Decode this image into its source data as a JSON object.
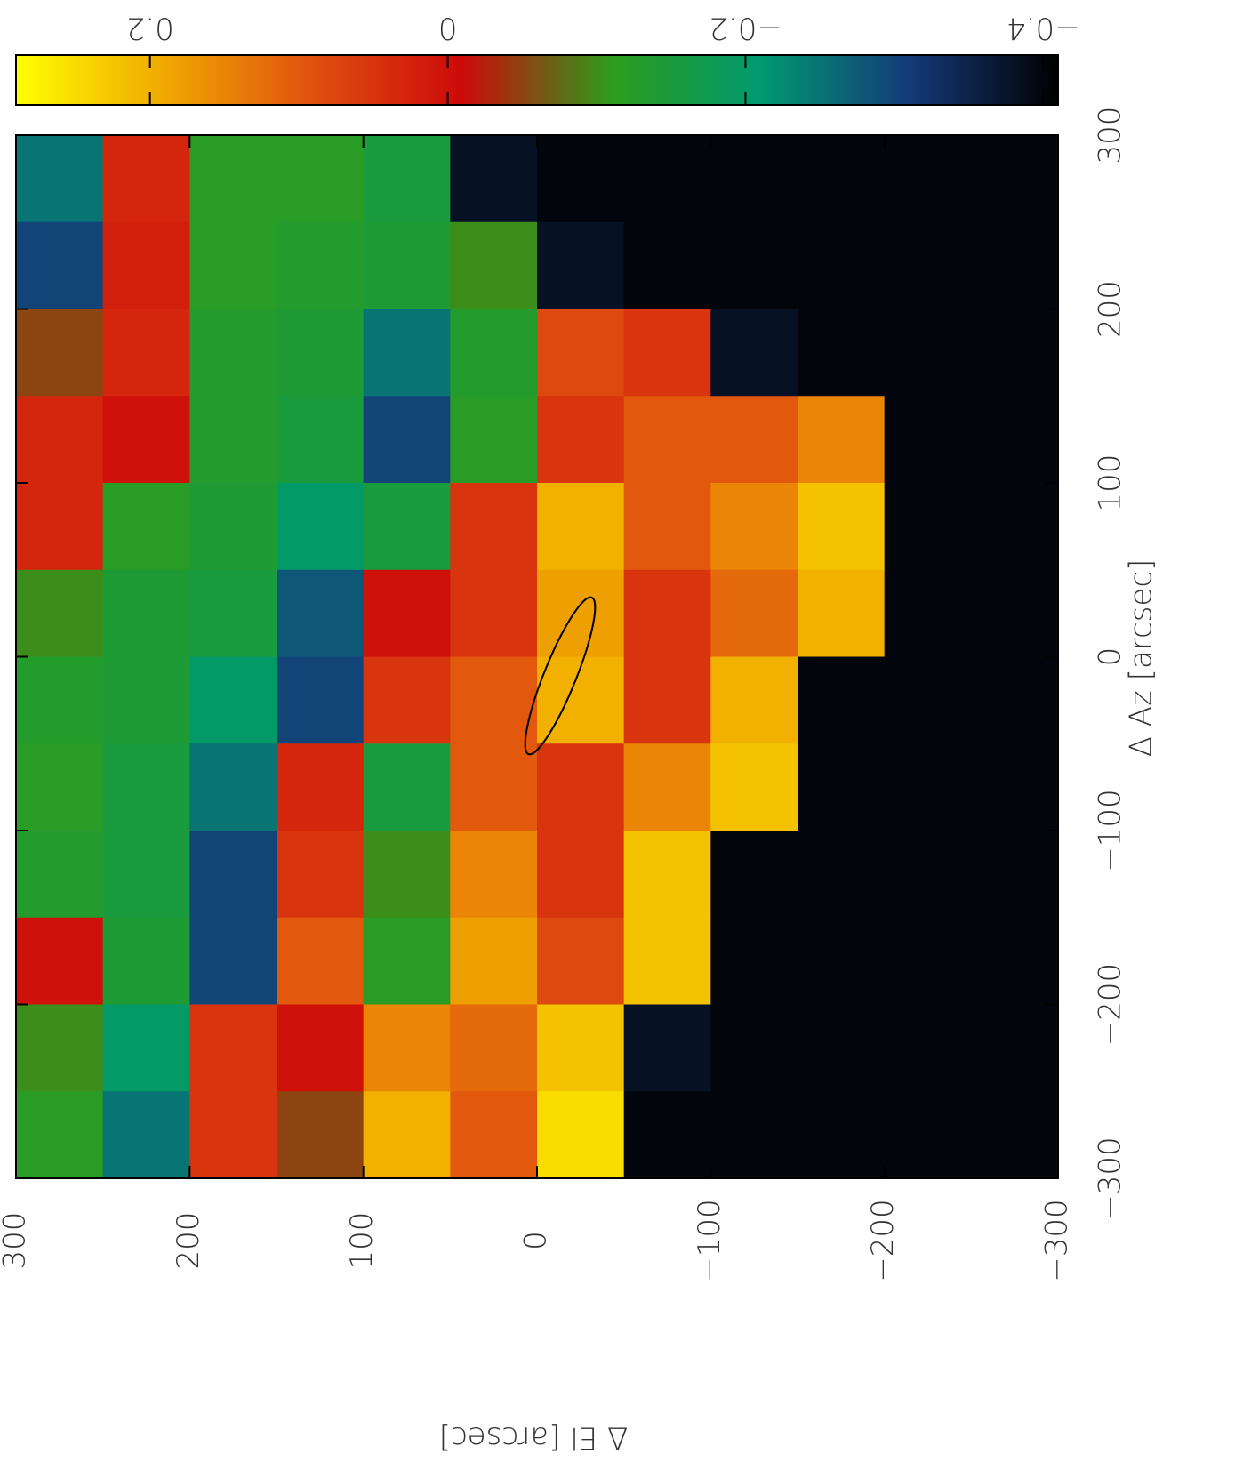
{
  "chart_data": {
    "type": "heatmap",
    "x_label": "Δ El [arcsec]",
    "y_label": "Δ Az [arcsec]",
    "xlim": [
      300,
      -300
    ],
    "ylim": [
      300,
      -300
    ],
    "xticks": [
      300,
      200,
      100,
      0,
      {
        "value": -100,
        "label": "−100"
      },
      {
        "value": -200,
        "label": "−200"
      },
      {
        "value": -300,
        "label": "−300"
      }
    ],
    "yticks": [
      300,
      200,
      100,
      0,
      {
        "value": -100,
        "label": "−100"
      },
      {
        "value": -200,
        "label": "−200"
      },
      {
        "value": -300,
        "label": "−300"
      }
    ],
    "x": [
      275,
      225,
      175,
      125,
      75,
      25,
      -25,
      -75,
      -125,
      -175,
      -225,
      -275
    ],
    "y": [
      275,
      225,
      175,
      125,
      75,
      25,
      -25,
      -75,
      -125,
      -175,
      -225,
      -275
    ],
    "z": [
      [
        -0.25,
        0.03,
        -0.12,
        -0.12,
        -0.15,
        -0.38,
        -0.4,
        -0.4,
        -0.4,
        -0.4,
        -0.4,
        -0.4
      ],
      [
        -0.3,
        0.02,
        -0.12,
        -0.13,
        -0.14,
        -0.1,
        -0.38,
        -0.4,
        -0.4,
        -0.4,
        -0.4,
        -0.4
      ],
      [
        -0.05,
        0.03,
        -0.13,
        -0.14,
        -0.25,
        -0.13,
        0.08,
        0.05,
        -0.38,
        -0.4,
        -0.4,
        -0.4
      ],
      [
        0.03,
        0.0,
        -0.13,
        -0.15,
        -0.3,
        -0.12,
        0.05,
        0.1,
        0.1,
        0.15,
        -0.4,
        -0.4
      ],
      [
        0.03,
        -0.12,
        -0.14,
        -0.2,
        -0.15,
        0.05,
        0.2,
        0.1,
        0.15,
        0.22,
        -0.4,
        -0.4
      ],
      [
        -0.1,
        -0.14,
        -0.15,
        -0.28,
        0.0,
        0.05,
        0.18,
        0.05,
        0.12,
        0.2,
        -0.4,
        -0.4
      ],
      [
        -0.13,
        -0.14,
        -0.2,
        -0.3,
        0.05,
        0.1,
        0.2,
        0.05,
        0.2,
        -0.4,
        -0.4,
        -0.4
      ],
      [
        -0.12,
        -0.15,
        -0.25,
        0.03,
        -0.15,
        0.1,
        0.05,
        0.15,
        0.22,
        -0.4,
        -0.4,
        -0.4
      ],
      [
        -0.13,
        -0.15,
        -0.3,
        0.05,
        -0.1,
        0.15,
        0.05,
        0.22,
        -0.4,
        -0.4,
        -0.4,
        -0.4
      ],
      [
        0.0,
        -0.14,
        -0.3,
        0.1,
        -0.12,
        0.18,
        0.08,
        0.22,
        -0.4,
        -0.4,
        -0.4,
        -0.4
      ],
      [
        -0.1,
        -0.2,
        0.05,
        0.0,
        0.15,
        0.12,
        0.22,
        -0.38,
        -0.4,
        -0.4,
        -0.4,
        -0.4
      ],
      [
        -0.12,
        -0.25,
        0.05,
        -0.05,
        0.2,
        0.1,
        0.25,
        -0.4,
        -0.4,
        -0.4,
        -0.4,
        -0.4
      ]
    ],
    "colorbar": {
      "lim": [
        0.29,
        -0.41
      ],
      "ticks": [
        0.2,
        0,
        {
          "value": -0.2,
          "label": "−0.2"
        },
        {
          "value": -0.4,
          "label": "−0.4"
        }
      ],
      "colors": [
        "#ffff00",
        "#f0a800",
        "#e05010",
        "#cc0a0a",
        "#2c9c1c",
        "#009a70",
        "#153a78",
        "#000000"
      ]
    }
  }
}
